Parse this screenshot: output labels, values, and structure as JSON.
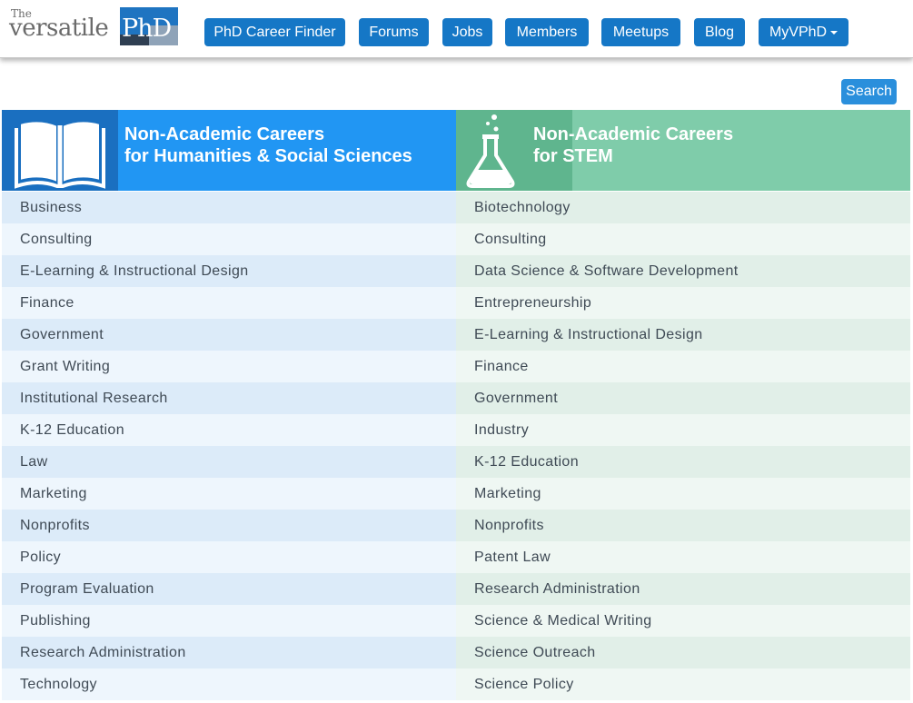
{
  "logo": {
    "the": "The",
    "versatile": "versatile",
    "phd": "PhD"
  },
  "nav": {
    "items": [
      "PhD Career Finder",
      "Forums",
      "Jobs",
      "Members",
      "Meetups",
      "Blog"
    ],
    "myvphd": "MyVPhD"
  },
  "search": {
    "label": "Search"
  },
  "humanities": {
    "title_line1": "Non-Academic Careers",
    "title_line2": "for Humanities & Social Sciences",
    "icon": "book-icon",
    "items": [
      "Business",
      "Consulting",
      "E-Learning & Instructional Design",
      "Finance",
      "Government",
      "Grant Writing",
      "Institutional Research",
      "K-12 Education",
      "Law",
      "Marketing",
      "Nonprofits",
      "Policy",
      "Program Evaluation",
      "Publishing",
      "Research Administration",
      "Technology"
    ]
  },
  "stem": {
    "title_line1": "Non-Academic Careers",
    "title_line2": "for STEM",
    "icon": "flask-icon",
    "items": [
      "Biotechnology",
      "Consulting",
      "Data Science & Software Development",
      "Entrepreneurship",
      "E-Learning & Instructional Design",
      "Finance",
      "Government",
      "Industry",
      "K-12 Education",
      "Marketing",
      "Nonprofits",
      "Patent Law",
      "Research Administration",
      "Science & Medical Writing",
      "Science Outreach",
      "Science Policy"
    ]
  },
  "colors": {
    "nav_button": "#1577c6",
    "humanities_header": "#2196f3",
    "stem_header": "#7fccaa"
  }
}
